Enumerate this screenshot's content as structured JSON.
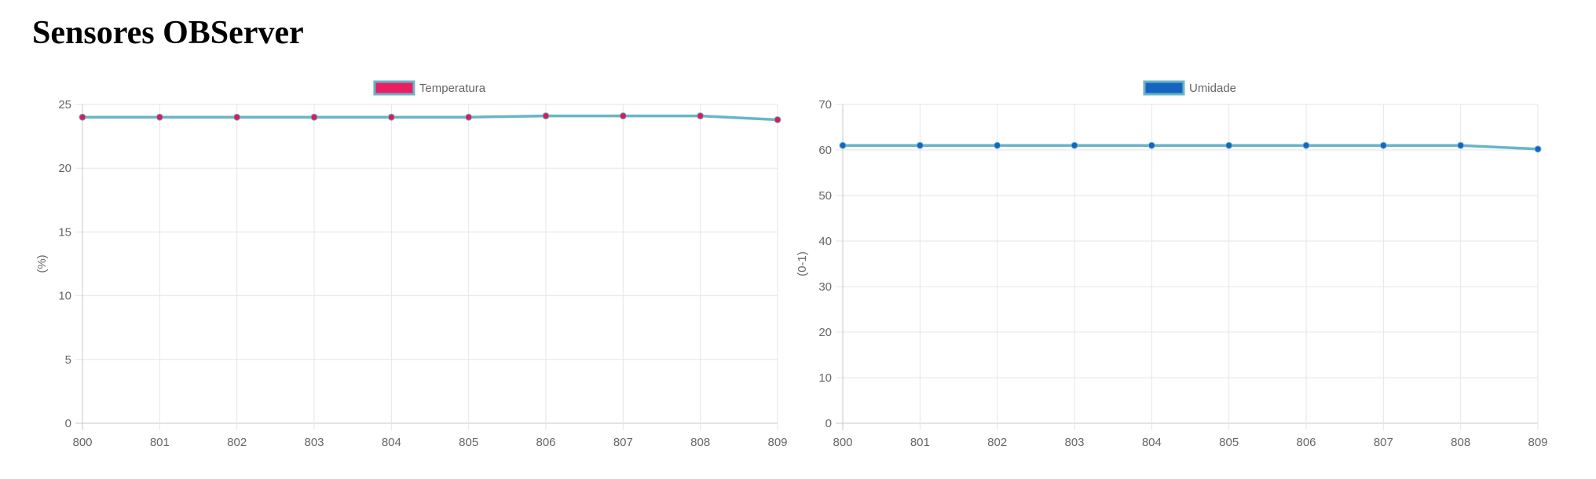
{
  "page": {
    "title": "Sensores OBServer"
  },
  "chart_data": [
    {
      "type": "line",
      "x": [
        "800",
        "801",
        "802",
        "803",
        "804",
        "805",
        "806",
        "807",
        "808",
        "809"
      ],
      "series": [
        {
          "name": "Temperatura",
          "values": [
            24,
            24,
            24,
            24,
            24,
            24,
            24.1,
            24.1,
            24.1,
            23.8
          ],
          "line_color": "#6ab4c8",
          "point_color": "#d81b5a",
          "legend_fill": "#e91e63",
          "legend_border": "#6ab4c8"
        }
      ],
      "xlabel": "",
      "ylabel": "(%)",
      "ylim": [
        0,
        25
      ],
      "yticks": [
        0,
        5,
        10,
        15,
        20,
        25
      ],
      "grid": true,
      "legend": "top-center"
    },
    {
      "type": "line",
      "x": [
        "800",
        "801",
        "802",
        "803",
        "804",
        "805",
        "806",
        "807",
        "808",
        "809"
      ],
      "series": [
        {
          "name": "Umidade",
          "values": [
            61,
            61,
            61,
            61,
            61,
            61,
            61,
            61,
            61,
            60.2
          ],
          "line_color": "#6ab4c8",
          "point_color": "#1565c0",
          "legend_fill": "#1565c0",
          "legend_border": "#6ab4c8"
        }
      ],
      "xlabel": "",
      "ylabel": "(0-1)",
      "ylim": [
        0,
        70
      ],
      "yticks": [
        0,
        10,
        20,
        30,
        40,
        50,
        60,
        70
      ],
      "grid": true,
      "legend": "top-center"
    }
  ]
}
